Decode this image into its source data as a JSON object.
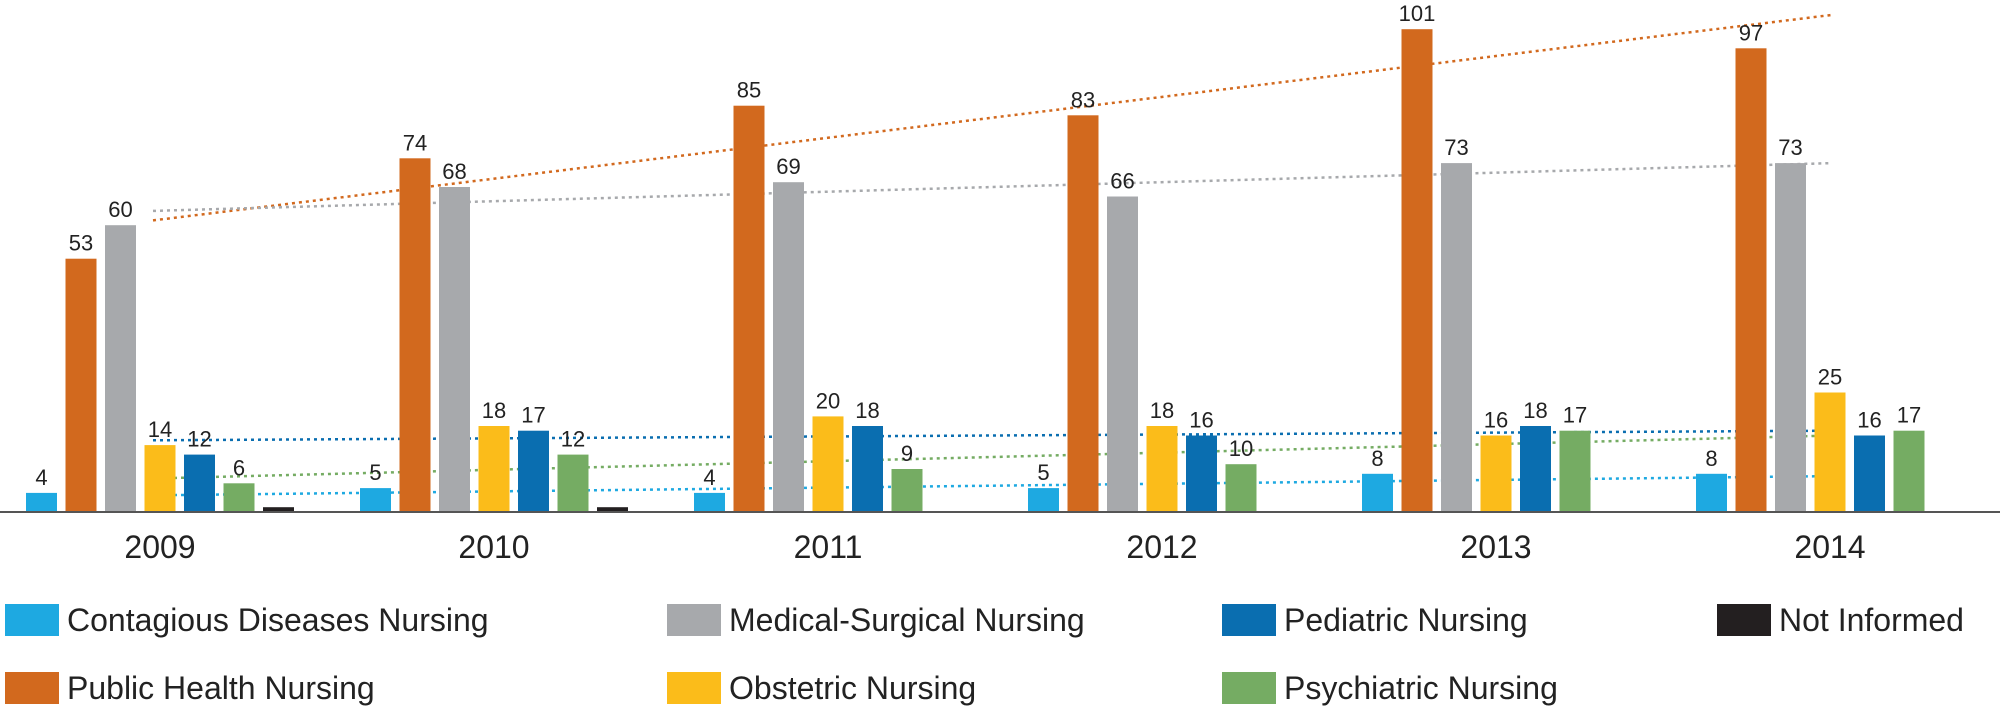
{
  "chart_data": {
    "type": "bar",
    "title": "",
    "xlabel": "",
    "ylabel": "",
    "ylim": [
      0,
      105
    ],
    "grid": false,
    "legend_position": "bottom",
    "categories": [
      "2009",
      "2010",
      "2011",
      "2012",
      "2013",
      "2014"
    ],
    "series": [
      {
        "name": "Contagious Diseases Nursing",
        "color": "#1ea9e1",
        "values": [
          4,
          5,
          4,
          5,
          8,
          8
        ]
      },
      {
        "name": "Public Health Nursing",
        "color": "#d2691e",
        "values": [
          53,
          74,
          85,
          83,
          101,
          97
        ]
      },
      {
        "name": "Medical-Surgical Nursing",
        "color": "#a7a9ac",
        "values": [
          60,
          68,
          69,
          66,
          73,
          73
        ]
      },
      {
        "name": "Obstetric Nursing",
        "color": "#fbbc1a",
        "values": [
          14,
          18,
          20,
          18,
          16,
          25
        ]
      },
      {
        "name": "Pediatric Nursing",
        "color": "#0a6eb0",
        "values": [
          12,
          17,
          18,
          16,
          18,
          16
        ]
      },
      {
        "name": "Psychiatric Nursing",
        "color": "#75ac63",
        "values": [
          6,
          12,
          9,
          10,
          17,
          17
        ]
      },
      {
        "name": "Not Informed",
        "color": "#231f20",
        "values": [
          1,
          1,
          null,
          null,
          null,
          null
        ]
      }
    ],
    "trendlines": [
      {
        "series": "Public Health Nursing",
        "color": "#d2691e",
        "start": 61,
        "end": 104
      },
      {
        "series": "Medical-Surgical Nursing",
        "color": "#a7a9ac",
        "start": 63,
        "end": 73
      },
      {
        "series": "Pediatric Nursing",
        "color": "#0a6eb0",
        "start": 15,
        "end": 17
      },
      {
        "series": "Psychiatric Nursing",
        "color": "#75ac63",
        "start": 7,
        "end": 16
      },
      {
        "series": "Contagious Diseases Nursing",
        "color": "#1ea9e1",
        "start": 3.5,
        "end": 7.5
      }
    ],
    "legend_order": [
      "Contagious Diseases Nursing",
      "Medical-Surgical Nursing",
      "Pediatric Nursing",
      "Not Informed",
      "Public Health Nursing",
      "Obstetric Nursing",
      "Psychiatric Nursing"
    ]
  }
}
